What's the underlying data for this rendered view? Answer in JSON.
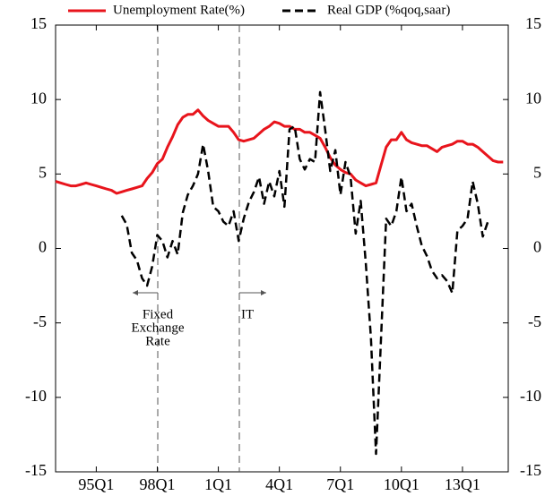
{
  "chart_data": {
    "type": "line",
    "categories": [
      null,
      null,
      null,
      null,
      null,
      null,
      null,
      null,
      "95Q1",
      null,
      null,
      null,
      null,
      null,
      null,
      null,
      null,
      null,
      null,
      null,
      "98Q1",
      null,
      null,
      null,
      null,
      null,
      null,
      null,
      null,
      null,
      null,
      null,
      "1Q1",
      null,
      null,
      null,
      null,
      null,
      null,
      null,
      null,
      null,
      null,
      null,
      "4Q1",
      null,
      null,
      null,
      null,
      null,
      null,
      null,
      null,
      null,
      null,
      null,
      "7Q1",
      null,
      null,
      null,
      null,
      null,
      null,
      null,
      null,
      null,
      null,
      null,
      "10Q1",
      null,
      null,
      null,
      null,
      null,
      null,
      null,
      null,
      null,
      null,
      null,
      "13Q1",
      null,
      null,
      null,
      null,
      null,
      null,
      null,
      null,
      null
    ],
    "series": [
      {
        "name": "Unemployment Rate(%)",
        "color": "#e8141c",
        "dash": false,
        "values": [
          4.5,
          4.4,
          4.3,
          4.2,
          4.2,
          4.3,
          4.4,
          4.3,
          4.2,
          4.1,
          4.0,
          3.9,
          3.7,
          3.8,
          3.9,
          4.0,
          4.1,
          4.2,
          4.7,
          5.1,
          5.7,
          6.0,
          6.8,
          7.5,
          8.3,
          8.8,
          9.0,
          9.0,
          9.3,
          8.9,
          8.6,
          8.4,
          8.2,
          8.2,
          8.2,
          7.8,
          7.3,
          7.2,
          7.3,
          7.4,
          7.7,
          8.0,
          8.2,
          8.5,
          8.4,
          8.2,
          8.2,
          8.0,
          8.0,
          7.8,
          7.8,
          7.6,
          7.4,
          6.8,
          6.1,
          5.6,
          5.3,
          5.1,
          5.0,
          4.6,
          4.4,
          4.2,
          4.3,
          4.4,
          5.6,
          6.8,
          7.3,
          7.3,
          7.8,
          7.3,
          7.1,
          7.0,
          6.9,
          6.9,
          6.7,
          6.5,
          6.8,
          6.9,
          7.0,
          7.2,
          7.2,
          7.0,
          7.0,
          6.8,
          6.5,
          6.2,
          5.9,
          5.8,
          5.8,
          null
        ]
      },
      {
        "name": "Real GDP (%qoq,saar)",
        "color": "#000000",
        "dash": true,
        "values": [
          null,
          null,
          null,
          null,
          null,
          null,
          null,
          null,
          null,
          null,
          null,
          null,
          null,
          2.2,
          1.6,
          -0.3,
          -0.8,
          -2.0,
          -2.5,
          -1.2,
          0.9,
          0.5,
          -0.6,
          0.5,
          -0.4,
          2.4,
          3.6,
          4.2,
          5.0,
          7.0,
          5.2,
          2.8,
          2.5,
          1.8,
          1.5,
          2.5,
          0.5,
          2.0,
          3.1,
          3.8,
          4.8,
          3.0,
          4.5,
          3.5,
          5.2,
          2.8,
          8.0,
          8.2,
          6.0,
          5.3,
          6.0,
          5.8,
          10.5,
          8.0,
          5.2,
          6.6,
          3.6,
          5.8,
          4.8,
          1.0,
          3.2,
          -1.0,
          -6.0,
          -13.8,
          -6.0,
          2.0,
          1.5,
          2.5,
          4.8,
          2.5,
          3.0,
          1.5,
          0.2,
          -0.5,
          -1.5,
          -2.0,
          -1.8,
          -2.2,
          -3.0,
          1.2,
          1.5,
          2.0,
          4.5,
          3.0,
          0.8,
          1.8,
          null,
          null,
          null,
          null
        ]
      }
    ],
    "ylim": [
      -15,
      15
    ],
    "yticks": [
      -15,
      -10,
      -5,
      0,
      5,
      10,
      15
    ],
    "y2lim": [
      -15,
      15
    ],
    "y2ticks": [
      -15,
      -10,
      -5,
      0,
      5,
      10,
      15
    ],
    "annotations": [
      {
        "lines": [
          "Fixed",
          "Exchange",
          "Rate"
        ]
      },
      {
        "lines": [
          "IT"
        ]
      }
    ],
    "legend": "top",
    "grid": false
  }
}
